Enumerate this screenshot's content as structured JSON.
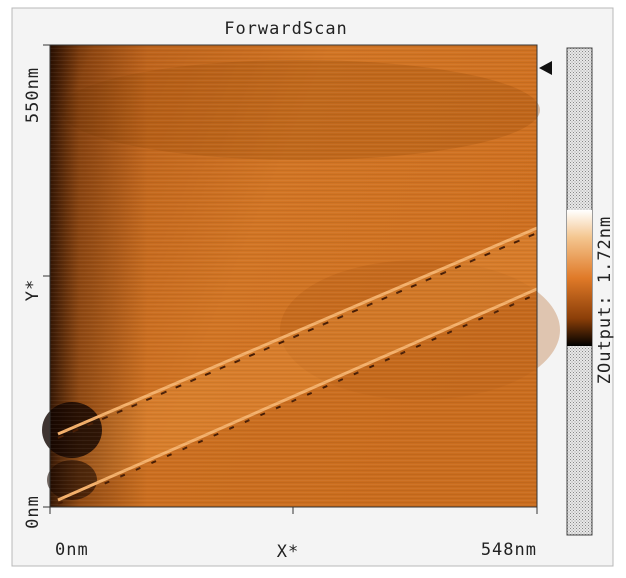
{
  "header": {
    "title": "ForwardScan"
  },
  "axes": {
    "y": {
      "top": "550nm",
      "middle": "Y*",
      "bottom": "0nm"
    },
    "x": {
      "left": "0nm",
      "middle": "X*",
      "right": "548nm"
    }
  },
  "colorbar": {
    "label": "ZOutput: 1.72nm"
  }
}
